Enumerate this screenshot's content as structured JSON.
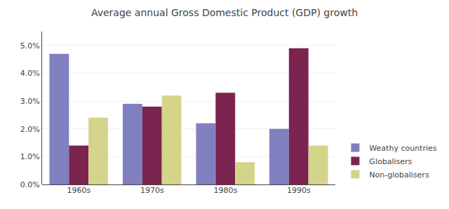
{
  "chart_data": {
    "type": "bar",
    "title": "Average annual Gross Domestic Product (GDP) growth",
    "categories": [
      "1960s",
      "1970s",
      "1980s",
      "1990s"
    ],
    "series": [
      {
        "name": "Weathy countries",
        "color": "#8080C0",
        "values": [
          0.047,
          0.029,
          0.022,
          0.02
        ]
      },
      {
        "name": "Globalisers",
        "color": "#7B2450",
        "values": [
          0.014,
          0.028,
          0.033,
          0.049
        ]
      },
      {
        "name": "Non-globalisers",
        "color": "#D4D48A",
        "values": [
          0.024,
          0.032,
          0.008,
          0.014
        ]
      }
    ],
    "ylim": [
      0,
      0.055
    ],
    "yticks": [
      {
        "value": 0.0,
        "label": "0.0%"
      },
      {
        "value": 0.01,
        "label": "1.0%"
      },
      {
        "value": 0.02,
        "label": "2.0%"
      },
      {
        "value": 0.03,
        "label": "3.0%"
      },
      {
        "value": 0.04,
        "label": "4.0%"
      },
      {
        "value": 0.05,
        "label": "5.0%"
      }
    ],
    "grid": true,
    "legend": "lower right"
  }
}
